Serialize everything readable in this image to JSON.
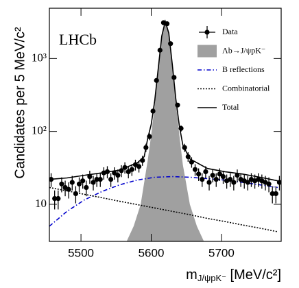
{
  "chart_data": {
    "type": "line",
    "annotation": "LHCb",
    "y_label": "Candidates per 5 MeV/c²",
    "x_label": {
      "symbol": "m",
      "subscript": "J/ψpK⁻",
      "unit": " [MeV/c²]"
    },
    "xlim": [
      5455,
      5785
    ],
    "xticks": [
      5500,
      5600,
      5700
    ],
    "ylim": [
      3.1,
      4900
    ],
    "log_y": true,
    "yticks": [
      {
        "value": 10,
        "label": "10"
      },
      {
        "value": 100,
        "label": "10²"
      },
      {
        "value": 1000,
        "label": "10³"
      }
    ],
    "legend": "upper right",
    "series": [
      {
        "name": "Data",
        "type": "errorbar",
        "color": "#000000",
        "x": [
          5457.5,
          5462.5,
          5467.5,
          5472.5,
          5477.5,
          5482.5,
          5487.5,
          5492.5,
          5497.5,
          5502.5,
          5507.5,
          5512.5,
          5517.5,
          5522.5,
          5527.5,
          5532.5,
          5537.5,
          5542.5,
          5547.5,
          5552.5,
          5557.5,
          5562.5,
          5567.5,
          5572.5,
          5577.5,
          5582.5,
          5587.5,
          5592.5,
          5597.5,
          5602.5,
          5607.5,
          5612.5,
          5617.5,
          5622.5,
          5627.5,
          5632.5,
          5637.5,
          5642.5,
          5647.5,
          5652.5,
          5657.5,
          5662.5,
          5667.5,
          5672.5,
          5677.5,
          5682.5,
          5687.5,
          5692.5,
          5697.5,
          5702.5,
          5707.5,
          5712.5,
          5717.5,
          5722.5,
          5727.5,
          5732.5,
          5737.5,
          5742.5,
          5747.5,
          5752.5,
          5757.5,
          5762.5,
          5767.5,
          5772.5,
          5777.5,
          5782.5
        ],
        "values": [
          22,
          12,
          12,
          19,
          17,
          16,
          20,
          14,
          19,
          21,
          17,
          24,
          20,
          22,
          22,
          27,
          28,
          22,
          27,
          25,
          29,
          32,
          28,
          30,
          35,
          33,
          40,
          60,
          85,
          190,
          500,
          1300,
          3100,
          3000,
          1600,
          550,
          230,
          110,
          60,
          45,
          38,
          30,
          26,
          22,
          28,
          20,
          25,
          22,
          26,
          24,
          21,
          22,
          20,
          25,
          22,
          21,
          20,
          22,
          21,
          22,
          21,
          20,
          19,
          14,
          14,
          20
        ],
        "errors": [
          4.7,
          3.5,
          3.5,
          4.4,
          4.1,
          4,
          4.5,
          3.7,
          4.4,
          4.6,
          4.1,
          4.9,
          4.5,
          4.7,
          4.7,
          5.2,
          5.3,
          4.7,
          5.2,
          5,
          5.4,
          5.7,
          5.3,
          5.5,
          5.9,
          5.7,
          6.3,
          7.7,
          9.2,
          14,
          22,
          36,
          56,
          55,
          40,
          23,
          15,
          10.5,
          7.7,
          6.7,
          6.2,
          5.5,
          5.1,
          4.7,
          5.3,
          4.5,
          5,
          4.7,
          5.1,
          4.9,
          4.6,
          4.7,
          4.5,
          5,
          4.7,
          4.6,
          4.5,
          4.7,
          4.6,
          4.7,
          4.6,
          4.5,
          4.4,
          3.7,
          3.7,
          4.5
        ]
      },
      {
        "name": "Λb→J/ψpK⁻",
        "type": "area",
        "color": "#a0a0a0",
        "x": [
          5565,
          5575,
          5585,
          5595,
          5600,
          5605,
          5610,
          5615,
          5620,
          5625,
          5630,
          5635,
          5640,
          5645,
          5655,
          5665,
          5675
        ],
        "values": [
          3.1,
          5,
          10,
          40,
          90,
          230,
          700,
          2000,
          3200,
          2200,
          800,
          250,
          90,
          35,
          10,
          5,
          3.1
        ]
      },
      {
        "name": "B reflections",
        "type": "line",
        "style": "dashdot",
        "color": "#0000cc",
        "x": [
          5455,
          5480,
          5505,
          5530,
          5555,
          5580,
          5605,
          5630,
          5655,
          5680,
          5705,
          5730,
          5755,
          5780
        ],
        "values": [
          5,
          8,
          11.5,
          15,
          18.5,
          21.5,
          23.5,
          24,
          23.5,
          22.5,
          21.5,
          20,
          18.5,
          17
        ]
      },
      {
        "name": "Combinatorial",
        "type": "line",
        "style": "dotted",
        "color": "#000000",
        "x": [
          5455,
          5480,
          5505,
          5530,
          5555,
          5580,
          5605,
          5630,
          5655,
          5680,
          5705,
          5730,
          5755,
          5780
        ],
        "values": [
          17,
          15.3,
          13.7,
          12.3,
          11,
          9.9,
          8.9,
          8,
          7.2,
          6.4,
          5.8,
          5.2,
          4.7,
          4.2
        ]
      },
      {
        "name": "Total",
        "type": "line",
        "style": "solid",
        "color": "#000000",
        "x": [
          5455,
          5480,
          5505,
          5530,
          5555,
          5580,
          5590,
          5595,
          5600,
          5605,
          5610,
          5615,
          5620,
          5625,
          5630,
          5635,
          5640,
          5645,
          5655,
          5680,
          5705,
          5730,
          5755,
          5780
        ],
        "values": [
          22,
          23,
          25,
          27,
          29.5,
          37,
          45,
          80,
          125,
          265,
          730,
          2030,
          3230,
          2230,
          830,
          280,
          120,
          65,
          42,
          31,
          28,
          26,
          23.5,
          21
        ]
      }
    ]
  }
}
